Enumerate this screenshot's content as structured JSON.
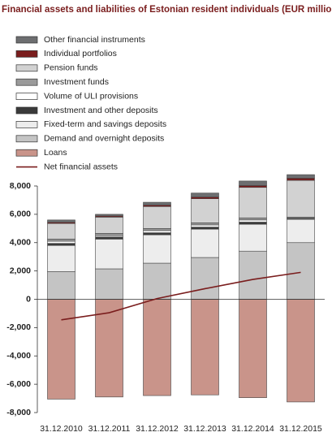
{
  "chart_data": {
    "type": "bar",
    "stacked": true,
    "title": "Financial assets and liabilities of Estonian resident individuals (EUR million)",
    "categories": [
      "31.12.2010",
      "31.12.2011",
      "31.12.2012",
      "31.12.2013",
      "31.12.2014",
      "31.12.2015"
    ],
    "series": [
      {
        "name": "Other financial instruments",
        "color": "#6d6e70",
        "values": [
          170,
          120,
          200,
          280,
          320,
          250
        ]
      },
      {
        "name": "Individual portfolios",
        "color": "#7a1d1d",
        "values": [
          80,
          80,
          100,
          120,
          130,
          150
        ]
      },
      {
        "name": "Pension funds",
        "color": "#d2d2d2",
        "values": [
          1100,
          1150,
          1550,
          1700,
          2150,
          2600
        ]
      },
      {
        "name": "Investment funds",
        "color": "#9a9a9a",
        "values": [
          150,
          150,
          150,
          150,
          150,
          50
        ]
      },
      {
        "name": "Volume of ULI provisions",
        "color": "#ffffff",
        "values": [
          150,
          100,
          150,
          150,
          150,
          50
        ]
      },
      {
        "name": "Investment and other deposits",
        "color": "#3a3a3a",
        "values": [
          150,
          150,
          150,
          150,
          150,
          50
        ]
      },
      {
        "name": "Fixed-term and savings deposits",
        "color": "#ededed",
        "values": [
          1850,
          2100,
          2000,
          2000,
          1900,
          1650
        ]
      },
      {
        "name": "Demand and overnight deposits",
        "color": "#c4c4c4",
        "values": [
          1950,
          2150,
          2550,
          2950,
          3400,
          4000
        ]
      },
      {
        "name": "Loans",
        "color": "#c9948a",
        "values": [
          -7050,
          -6900,
          -6800,
          -6750,
          -6950,
          -7250
        ]
      },
      {
        "name": "Net financial assets",
        "color": "#7a1d1d",
        "type": "line",
        "values": [
          -1450,
          -950,
          50,
          750,
          1400,
          1900
        ]
      }
    ],
    "ylim": [
      -8000,
      8000
    ],
    "yticks": [
      {
        "value": 8000,
        "label": "8,000"
      },
      {
        "value": 6000,
        "label": "6,000"
      },
      {
        "value": 4000,
        "label": "4,000"
      },
      {
        "value": 2000,
        "label": "2,000"
      },
      0,
      {
        "value": -2000,
        "label": "-2,000"
      },
      {
        "value": -4000,
        "label": "-4,000"
      },
      {
        "value": -6000,
        "label": "-6,000"
      },
      {
        "value": -8000,
        "label": "-8,000"
      }
    ],
    "legend": "top"
  }
}
